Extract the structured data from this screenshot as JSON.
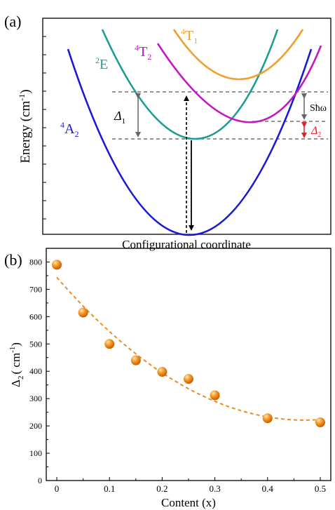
{
  "panel_a": {
    "label": "(a)",
    "ylabel": "Energy (cm",
    "ylabel_sup": "-1",
    "ylabel_end": ")",
    "xlabel": "Configurational coordinate",
    "states": [
      {
        "main": "4",
        "letter": "A",
        "sub": "2",
        "color": "#1a1ad6"
      },
      {
        "main": "2",
        "letter": "E",
        "sub": "",
        "color": "#1a9e91"
      },
      {
        "main": "4",
        "letter": "T",
        "sub": "2",
        "color": "#c418c4"
      },
      {
        "main": "4",
        "letter": "T",
        "sub": "1",
        "color": "#f0a030"
      }
    ],
    "annotations": {
      "delta1": "Δ",
      "delta1_sub": "1",
      "delta2": "Δ",
      "delta2_sub": "2",
      "shw": "Sħω"
    },
    "colors": {
      "delta2": "#e0202a",
      "arrow": "#000000",
      "dashed": "#555555",
      "gray_arrow": "#666666"
    }
  },
  "panel_b": {
    "label": "(b)"
  },
  "chart_data": {
    "type": "scatter",
    "x": [
      0,
      0.05,
      0.1,
      0.15,
      0.2,
      0.25,
      0.3,
      0.4,
      0.5
    ],
    "y": [
      790,
      615,
      500,
      440,
      398,
      372,
      312,
      228,
      213
    ],
    "xlabel": "Content (x)",
    "ylabel_main": "Δ",
    "ylabel_sub": "2",
    "ylabel_unit": "( cm",
    "ylabel_sup": "-1",
    "ylabel_end": ")",
    "xlim": [
      -0.02,
      0.52
    ],
    "ylim": [
      0,
      850
    ],
    "xticks": [
      "0",
      "0.1",
      "0.2",
      "0.3",
      "0.4",
      "0.5"
    ],
    "yticks": [
      "0",
      "100",
      "200",
      "300",
      "400",
      "500",
      "600",
      "700",
      "800"
    ],
    "fit": "dashed curve",
    "color": "#f08c1e"
  }
}
